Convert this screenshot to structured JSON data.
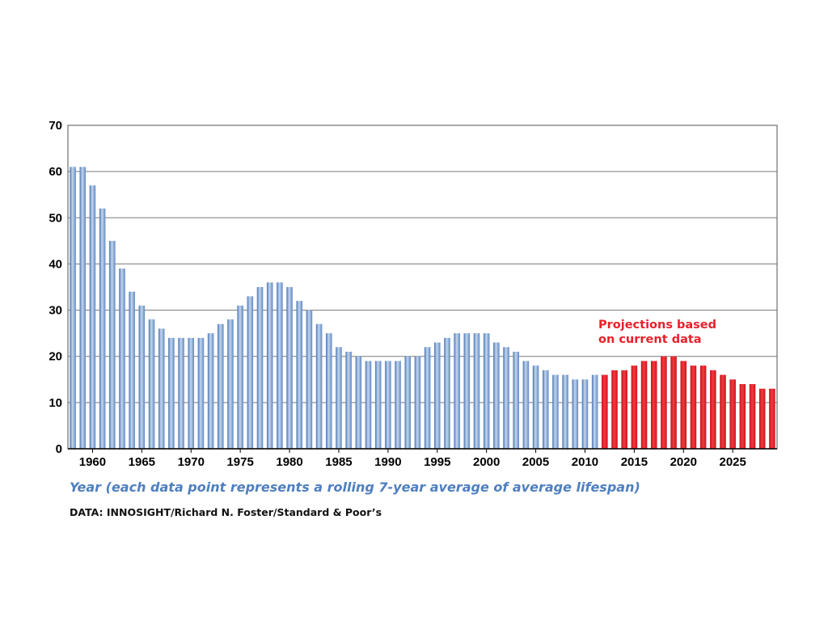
{
  "chart_data": {
    "type": "bar",
    "title": "",
    "xlabel": "Year (each data point represents a rolling 7-year average of average lifespan)",
    "ylabel": "",
    "source": "DATA: INNOSIGHT/Richard N. Foster/Standard & Poor’s",
    "annotation": [
      "Projections based",
      "on current data"
    ],
    "ylim": [
      0,
      70
    ],
    "yticks": [
      0,
      10,
      20,
      30,
      40,
      50,
      60,
      70
    ],
    "xticks": [
      1960,
      1965,
      1970,
      1975,
      1980,
      1985,
      1990,
      1995,
      2000,
      2005,
      2010,
      2015,
      2020,
      2025
    ],
    "grid": true,
    "legend": "none",
    "colors": {
      "historical": "#7ba3d6",
      "projection": "#e41d24",
      "grid": "#7a7a7a"
    },
    "series": [
      {
        "kind": "historical",
        "x": [
          1958,
          1959,
          1960,
          1961,
          1962,
          1963,
          1964,
          1965,
          1966,
          1967,
          1968,
          1969,
          1970,
          1971,
          1972,
          1973,
          1974,
          1975,
          1976,
          1977,
          1978,
          1979,
          1980,
          1981,
          1982,
          1983,
          1984,
          1985,
          1986,
          1987,
          1988,
          1989,
          1990,
          1991,
          1992,
          1993,
          1994,
          1995,
          1996,
          1997,
          1998,
          1999,
          2000,
          2001,
          2002,
          2003,
          2004,
          2005,
          2006,
          2007,
          2008,
          2009,
          2010,
          2011
        ],
        "values": [
          61,
          61,
          57,
          52,
          45,
          39,
          34,
          31,
          28,
          26,
          24,
          24,
          24,
          24,
          25,
          27,
          28,
          31,
          33,
          35,
          36,
          36,
          35,
          32,
          30,
          27,
          25,
          22,
          21,
          20,
          19,
          19,
          19,
          19,
          20,
          20,
          22,
          23,
          24,
          25,
          25,
          25,
          25,
          23,
          22,
          21,
          19,
          18,
          17,
          16,
          16,
          15,
          15,
          16
        ]
      },
      {
        "kind": "projection",
        "x": [
          2012,
          2013,
          2014,
          2015,
          2016,
          2017,
          2018,
          2019,
          2020,
          2021,
          2022,
          2023,
          2024,
          2025,
          2026,
          2027,
          2028,
          2029
        ],
        "values": [
          16,
          17,
          17,
          18,
          19,
          19,
          20,
          20,
          19,
          18,
          18,
          17,
          16,
          15,
          14,
          14,
          13,
          13
        ]
      }
    ]
  }
}
